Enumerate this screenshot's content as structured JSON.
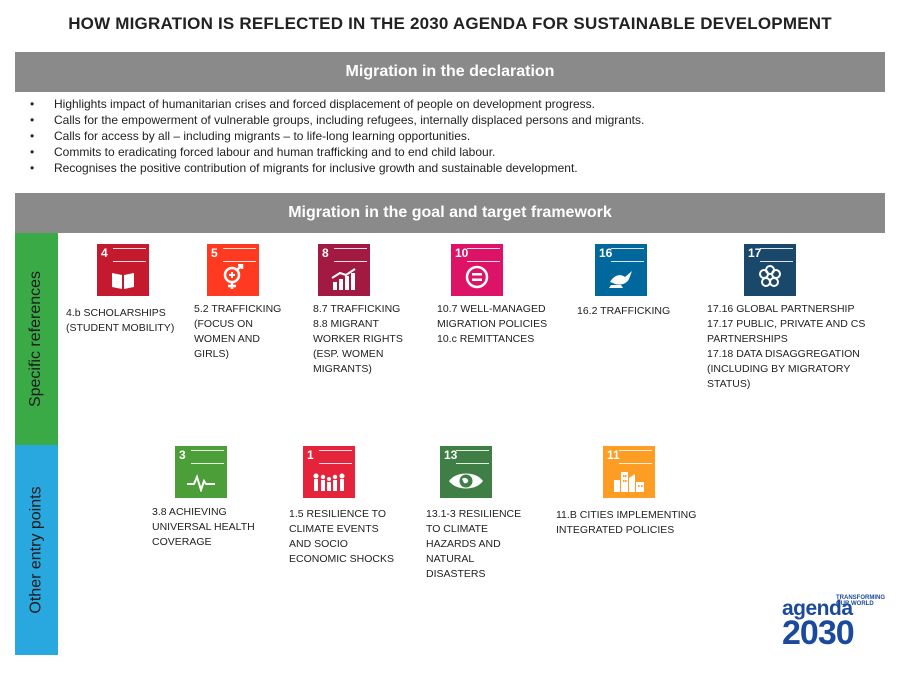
{
  "title": "HOW MIGRATION IS REFLECTED IN THE 2030 AGENDA FOR SUSTAINABLE DEVELOPMENT",
  "declaration": {
    "header": "Migration in the declaration",
    "bullets": [
      "Highlights impact of humanitarian crises and forced displacement of people on development progress.",
      "Calls for the empowerment of vulnerable groups, including refugees, internally displaced persons and migrants.",
      "Calls for access by all – including migrants – to life-long learning opportunities.",
      "Commits to eradicating forced labour and human trafficking and to end child labour.",
      "Recognises the positive contribution of migrants for inclusive growth and sustainable development."
    ]
  },
  "framework": {
    "header": "Migration in the goal and target framework",
    "specific_label": "Specific references",
    "other_label": "Other entry points"
  },
  "specific": [
    {
      "num": "4",
      "color": "#c5192d",
      "icon": "book-icon",
      "lines": [
        "4.b SCHOLARSHIPS",
        "(STUDENT MOBILITY)"
      ]
    },
    {
      "num": "5",
      "color": "#ff3a21",
      "icon": "gender-icon",
      "lines": [
        "5.2 TRAFFICKING",
        "(FOCUS ON",
        "WOMEN AND",
        "GIRLS)"
      ]
    },
    {
      "num": "8",
      "color": "#a21942",
      "icon": "growth-chart-icon",
      "lines": [
        "8.7 TRAFFICKING",
        "8.8 MIGRANT",
        "WORKER RIGHTS",
        "(ESP. WOMEN",
        "MIGRANTS)"
      ]
    },
    {
      "num": "10",
      "color": "#dd1367",
      "icon": "equal-icon",
      "lines": [
        "10.7 WELL-MANAGED",
        "MIGRATION POLICIES",
        "10.c REMITTANCES"
      ]
    },
    {
      "num": "16",
      "color": "#00689d",
      "icon": "dove-icon",
      "lines": [
        "16.2 TRAFFICKING"
      ]
    },
    {
      "num": "17",
      "color": "#19486a",
      "icon": "flower-icon",
      "lines": [
        "17.16 GLOBAL PARTNERSHIP",
        "17.17 PUBLIC, PRIVATE AND CS",
        "PARTNERSHIPS",
        "17.18 DATA DISAGGREGATION",
        "(INCLUDING BY MIGRATORY",
        "STATUS)"
      ]
    }
  ],
  "other": [
    {
      "num": "3",
      "color": "#4c9f38",
      "icon": "heartbeat-icon",
      "lines": [
        "3.8 ACHIEVING",
        "UNIVERSAL HEALTH",
        "COVERAGE"
      ]
    },
    {
      "num": "1",
      "color": "#e5243b",
      "icon": "family-icon",
      "lines": [
        "1.5 RESILIENCE TO",
        "CLIMATE EVENTS",
        "AND SOCIO",
        "ECONOMIC SHOCKS"
      ]
    },
    {
      "num": "13",
      "color": "#3f7e44",
      "icon": "eye-globe-icon",
      "lines": [
        "13.1-3 RESILIENCE",
        "TO CLIMATE",
        "HAZARDS AND",
        "NATURAL",
        "DISASTERS"
      ]
    },
    {
      "num": "11",
      "color": "#fd9d24",
      "icon": "city-icon",
      "lines": [
        "11.B CITIES IMPLEMENTING",
        "INTEGRATED POLICIES"
      ]
    }
  ],
  "logo": {
    "top": "TRANSFORMING OUR WORLD",
    "word": "agenda",
    "year": "2030",
    "color": "#1b4a9c"
  }
}
